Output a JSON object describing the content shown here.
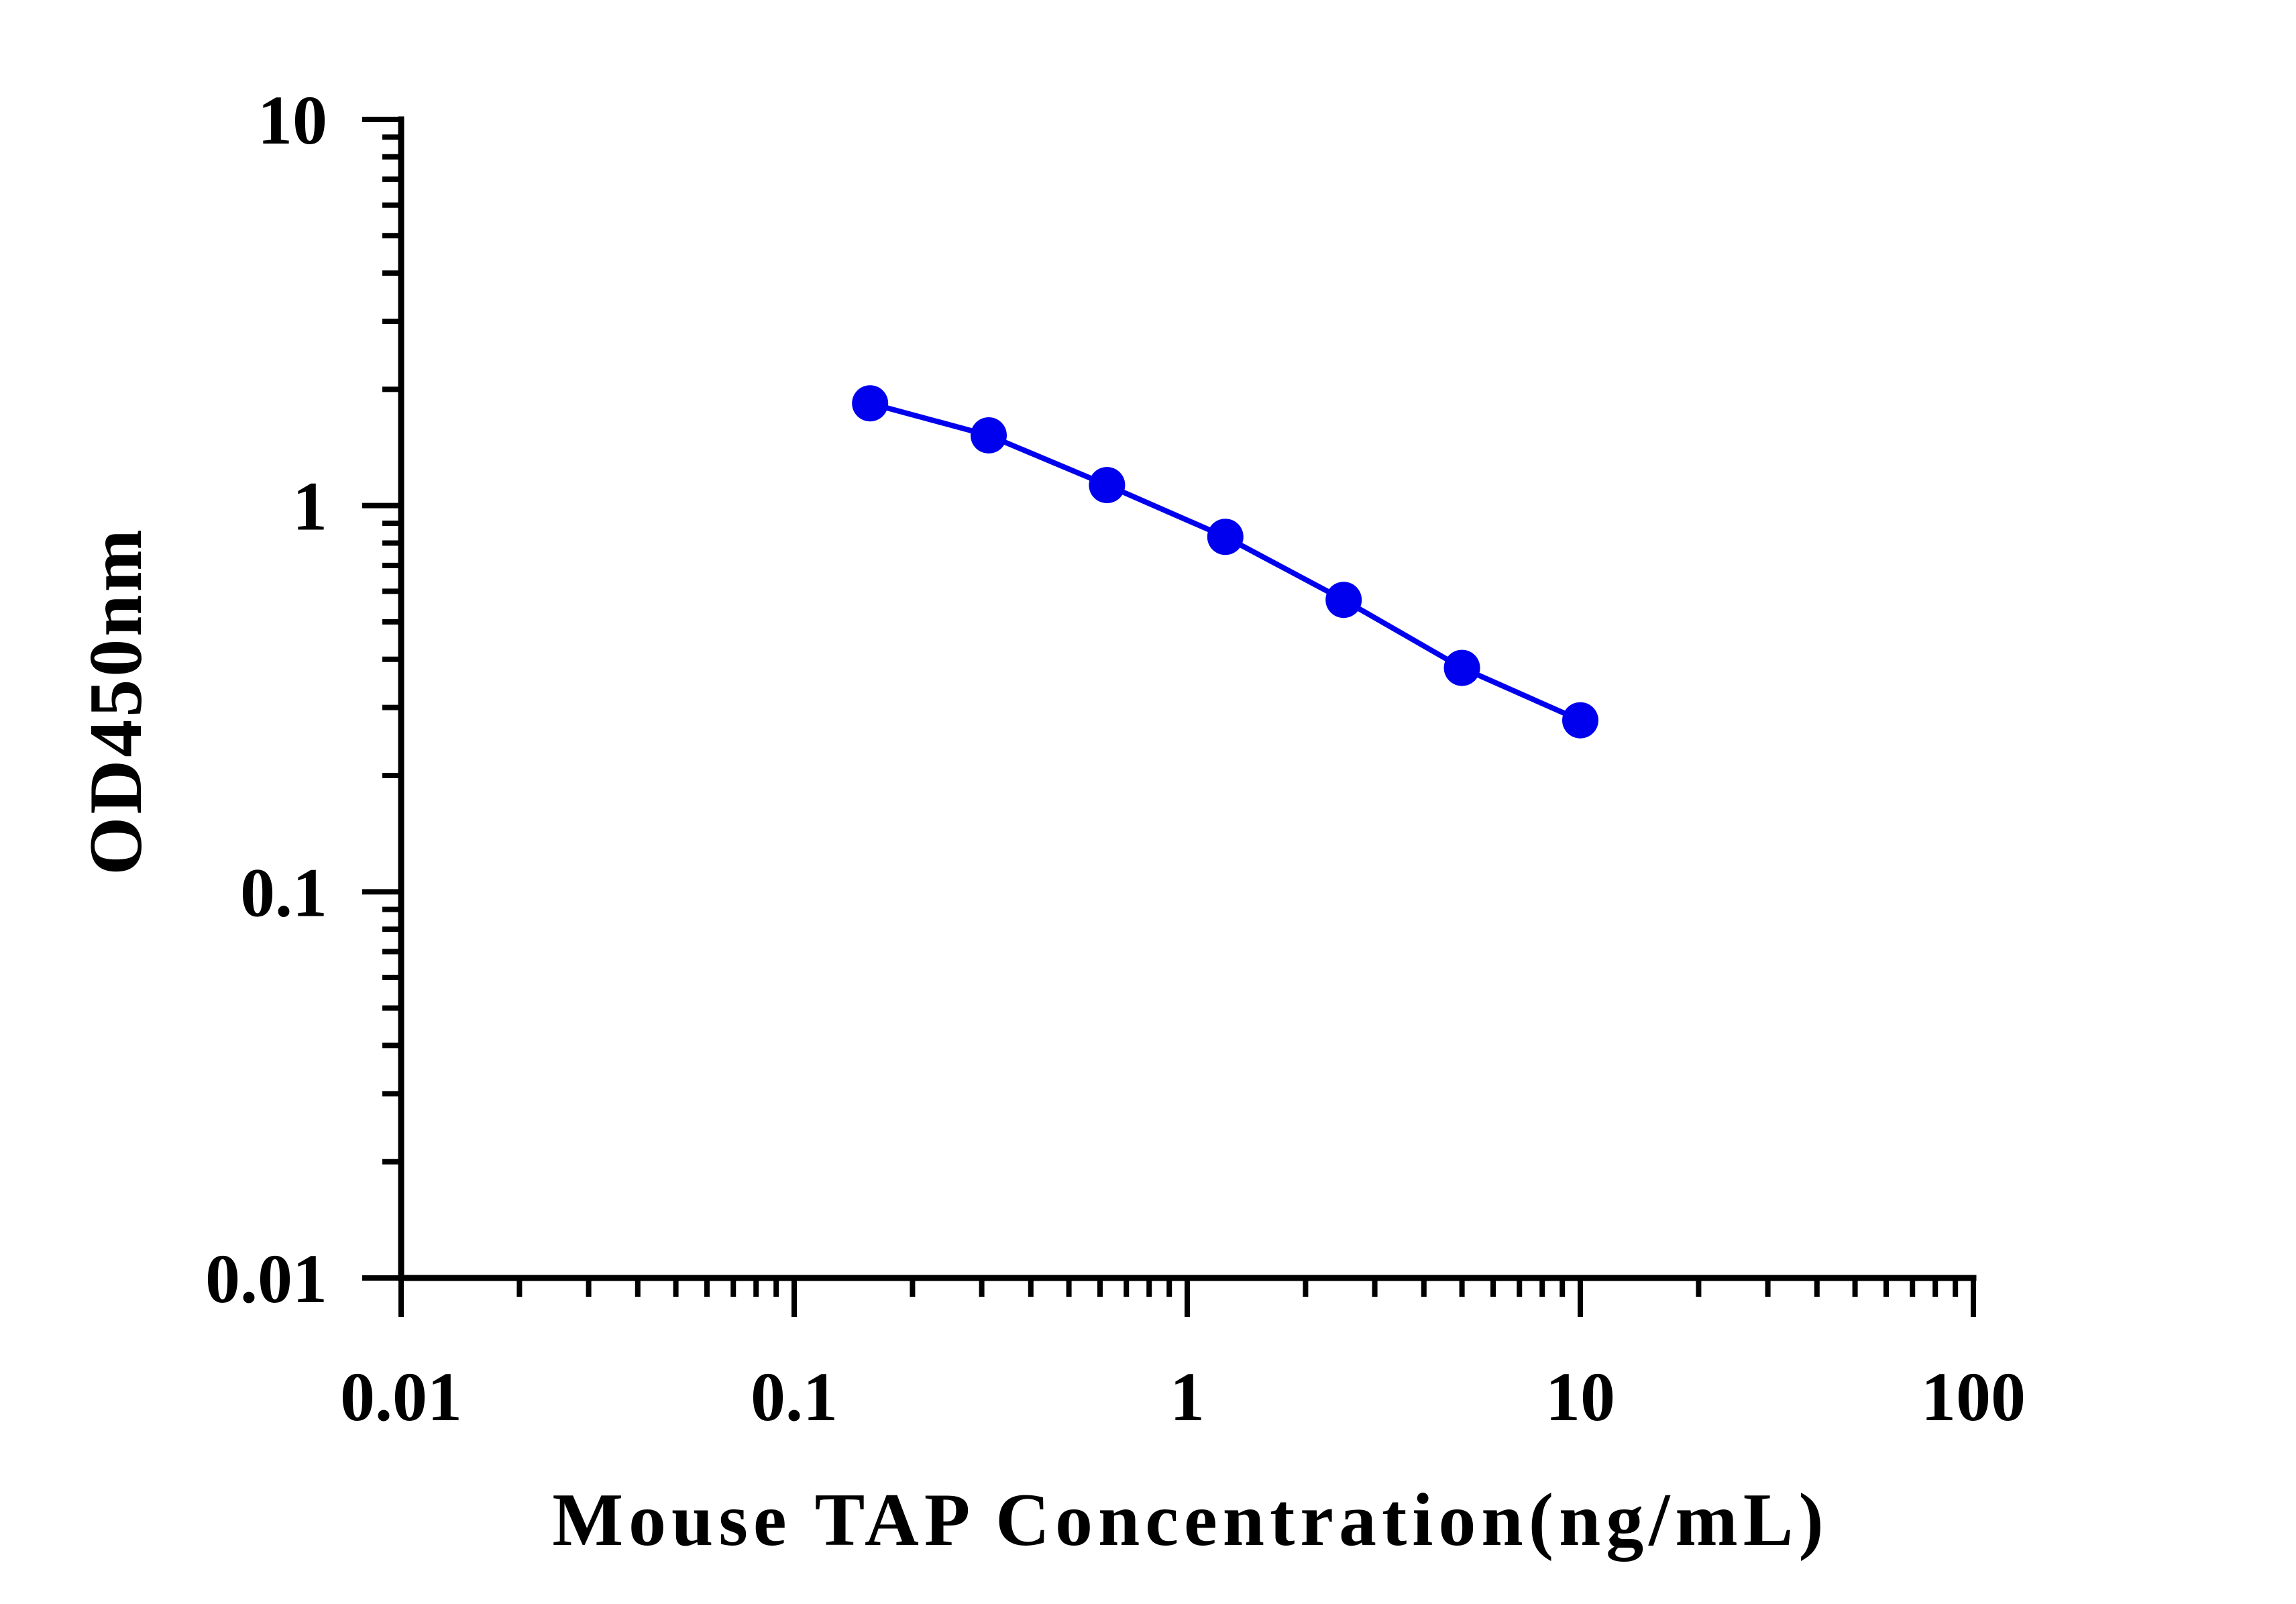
{
  "chart_data": {
    "type": "line",
    "title": "",
    "xlabel": "Mouse TAP Concentration(ng/mL)",
    "ylabel": "OD450nm",
    "x_scale": "log",
    "y_scale": "log",
    "xlim": [
      0.01,
      100
    ],
    "ylim": [
      0.01,
      10
    ],
    "x_ticks": [
      "0.01",
      "0.1",
      "1",
      "10",
      "100"
    ],
    "y_ticks": [
      "0.01",
      "0.1",
      "1",
      "10"
    ],
    "grid": false,
    "legend": "none",
    "series": [
      {
        "color": "#0000ee",
        "x": [
          0.156,
          0.3125,
          0.625,
          1.25,
          2.5,
          5,
          10
        ],
        "y": [
          1.84,
          1.52,
          1.13,
          0.83,
          0.57,
          0.38,
          0.278
        ]
      }
    ]
  }
}
